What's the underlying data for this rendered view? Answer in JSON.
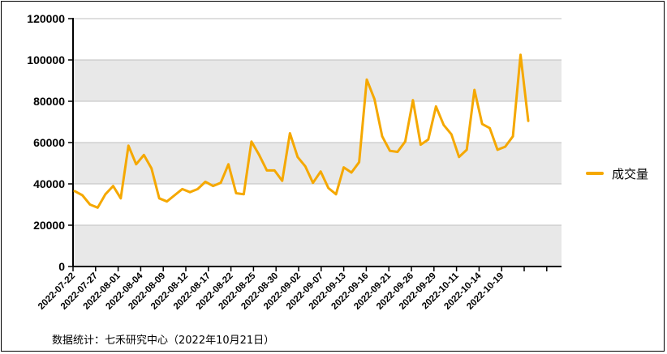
{
  "source_note": "数据统计：七禾研究中心（2022年10月21日）",
  "colors": {
    "line": "#F5A800",
    "band": "#E8E8E8",
    "axis": "#000000",
    "grid": "#BFBFBF"
  },
  "chart_data": {
    "type": "line",
    "title": "",
    "xlabel": "",
    "ylabel": "",
    "ylim": [
      0,
      120000
    ],
    "y_ticks": [
      0,
      20000,
      40000,
      60000,
      80000,
      100000,
      120000
    ],
    "grid": true,
    "legend_position": "right",
    "x_tick_labels": [
      "2022-07-22",
      "2022-07-27",
      "2022-08-01",
      "2022-08-04",
      "2022-08-09",
      "2022-08-12",
      "2022-08-17",
      "2022-08-22",
      "2022-08-25",
      "2022-08-30",
      "2022-09-02",
      "2022-09-07",
      "2022-09-13",
      "2022-09-16",
      "2022-09-21",
      "2022-09-26",
      "2022-09-29",
      "2022-10-11",
      "2022-10-14",
      "2022-10-19"
    ],
    "series": [
      {
        "name": "成交量",
        "values": [
          36500,
          34500,
          30000,
          28500,
          35000,
          39000,
          33000,
          58500,
          49500,
          54000,
          47500,
          33000,
          31500,
          34500,
          37500,
          36000,
          37500,
          41000,
          39000,
          40500,
          49500,
          35500,
          35000,
          60500,
          54000,
          46500,
          46500,
          41500,
          64500,
          53000,
          48500,
          40500,
          46000,
          38000,
          35000,
          48000,
          45500,
          50500,
          90500,
          81000,
          63000,
          56000,
          55500,
          60500,
          80500,
          59000,
          61500,
          77500,
          68500,
          64000,
          53000,
          56500,
          85500,
          69000,
          67000,
          56500,
          58000,
          63000,
          102500,
          70500
        ]
      }
    ]
  }
}
